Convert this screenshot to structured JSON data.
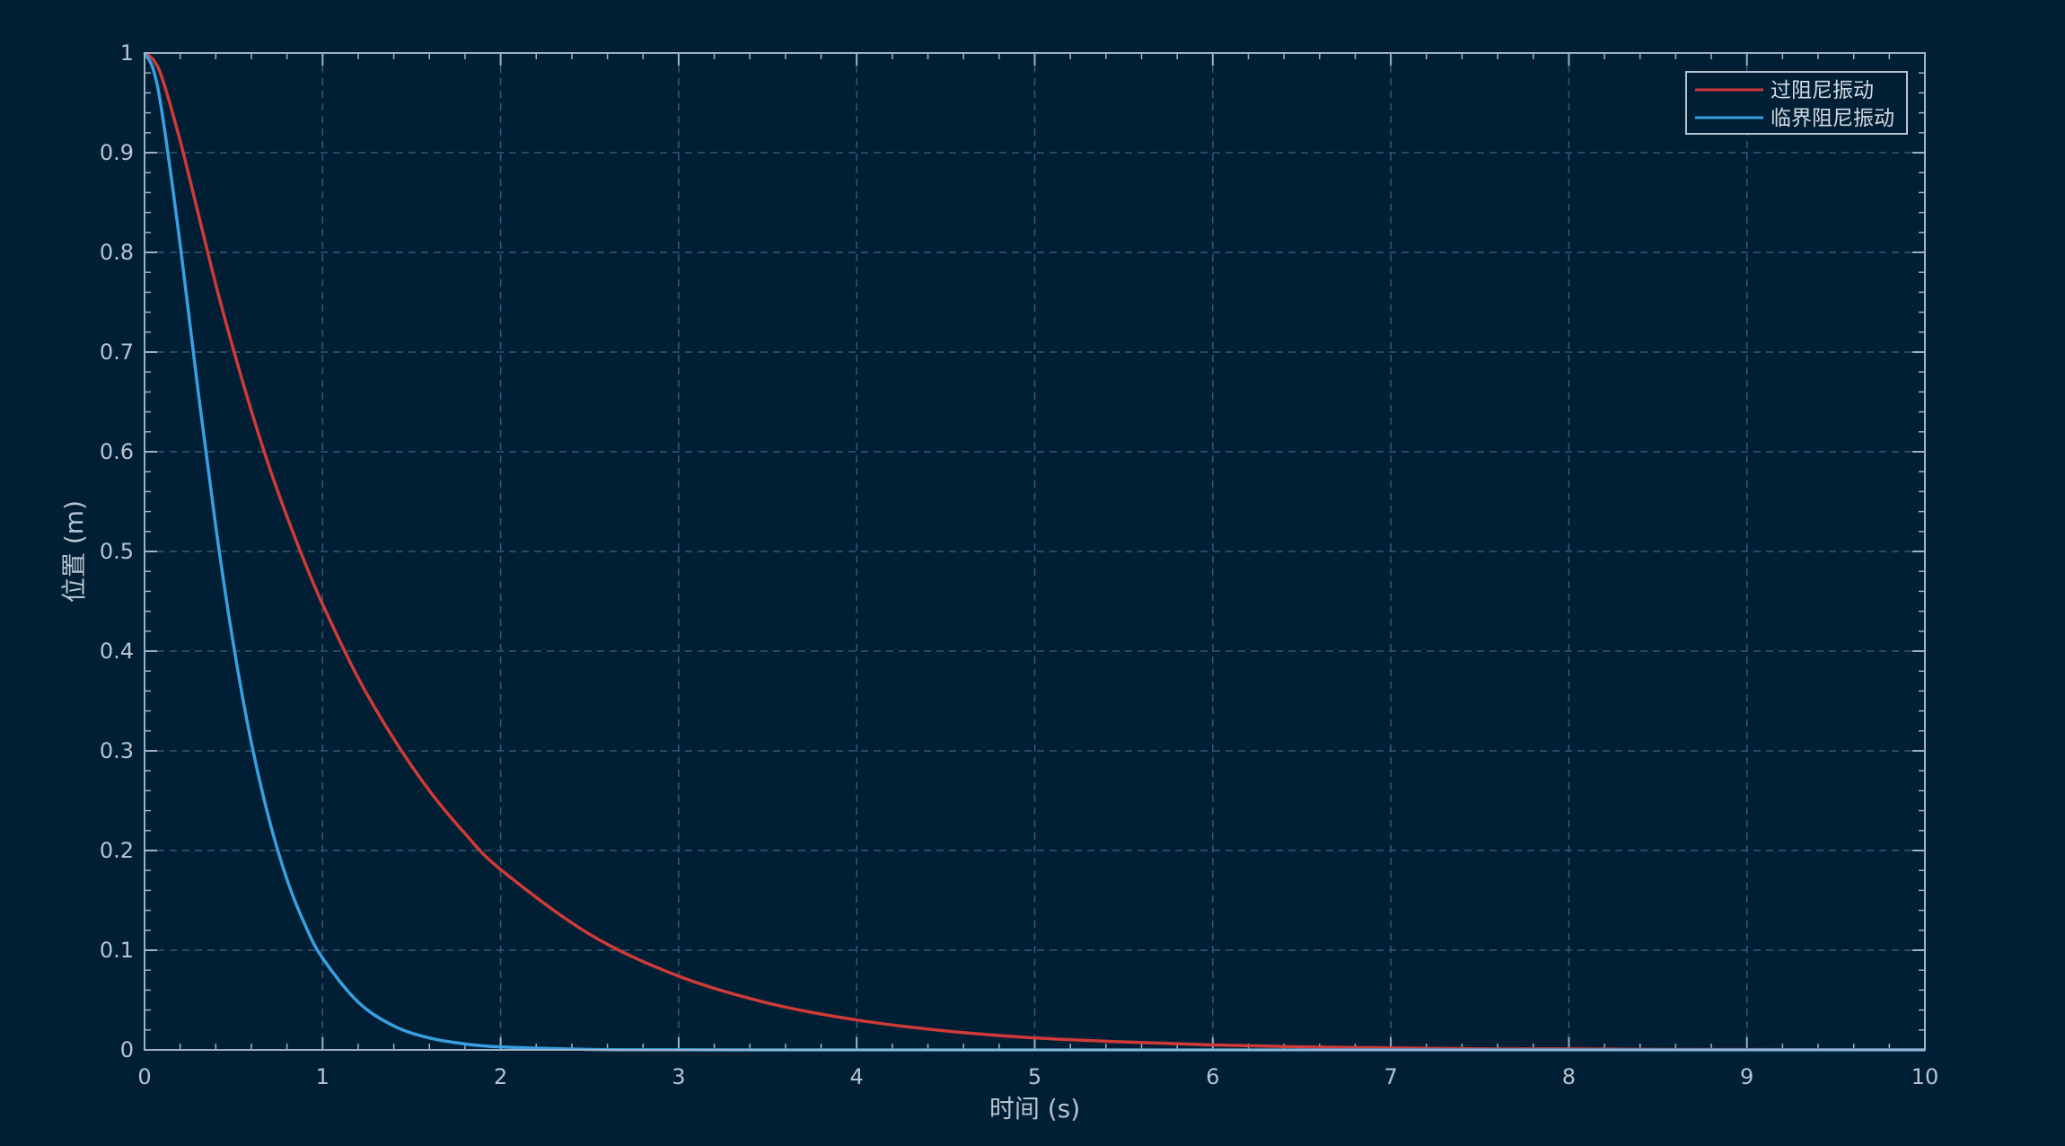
{
  "colors": {
    "background": "#001f35",
    "axis": "#9fb0c0",
    "grid": "#3a5670",
    "overdamped": "#d03a37",
    "critical": "#3a9fe0"
  },
  "chart_data": {
    "type": "line",
    "xlabel": "时间 (s)",
    "ylabel": "位置 (m)",
    "xlim": [
      0,
      10
    ],
    "ylim": [
      0,
      1
    ],
    "x_ticks": [
      "0",
      "1",
      "2",
      "3",
      "4",
      "5",
      "6",
      "7",
      "8",
      "9",
      "10"
    ],
    "y_ticks": [
      "0",
      "0.1",
      "0.2",
      "0.3",
      "0.4",
      "0.5",
      "0.6",
      "0.7",
      "0.8",
      "0.9",
      "1"
    ],
    "grid": true,
    "legend_position": "top-right",
    "x": [
      0,
      0.05,
      0.1,
      0.2,
      0.3,
      0.4,
      0.5,
      0.6,
      0.7,
      0.8,
      0.9,
      1.0,
      1.2,
      1.4,
      1.6,
      1.8,
      2.0,
      2.5,
      3.0,
      3.5,
      4.0,
      4.5,
      5.0,
      5.5,
      6.0,
      6.5,
      7.0,
      7.5,
      8.0,
      8.5,
      9.0,
      9.5,
      10.0
    ],
    "series": [
      {
        "name": "过阻尼振动",
        "color": "#d03a37",
        "values": [
          1.0,
          0.993,
          0.974,
          0.912,
          0.84,
          0.768,
          0.702,
          0.641,
          0.585,
          0.535,
          0.489,
          0.447,
          0.373,
          0.312,
          0.26,
          0.217,
          0.181,
          0.116,
          0.074,
          0.047,
          0.03,
          0.019,
          0.012,
          0.008,
          0.005,
          0.003,
          0.002,
          0.001,
          0.001,
          0.0005,
          0.0003,
          0.0002,
          0.0001
        ]
      },
      {
        "name": "临界阻尼振动",
        "color": "#3a9fe0",
        "values": [
          1.0,
          0.983,
          0.938,
          0.808,
          0.662,
          0.525,
          0.406,
          0.308,
          0.231,
          0.171,
          0.126,
          0.092,
          0.048,
          0.024,
          0.012,
          0.006,
          0.003,
          0.0005,
          0.0001,
          0,
          0,
          0,
          0,
          0,
          0,
          0,
          0,
          0,
          0,
          0,
          0,
          0,
          0
        ]
      }
    ]
  }
}
